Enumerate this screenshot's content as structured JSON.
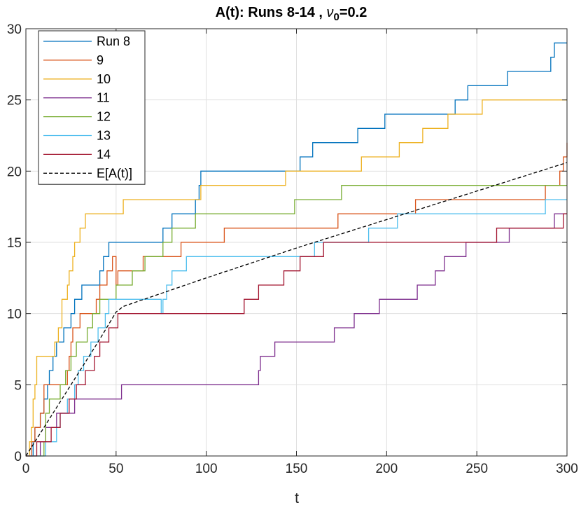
{
  "chart_data": {
    "type": "line",
    "title": "A(t): Runs 8-14 , ν₀=0.2",
    "title_parts": {
      "main": "A(t): Runs 8-14 , ",
      "symbol": "ν",
      "subscript": "0",
      "suffix": "=0.2"
    },
    "xlabel": "t",
    "ylabel": "",
    "xlim": [
      0,
      300
    ],
    "ylim": [
      0,
      30
    ],
    "xticks": [
      "0",
      "50",
      "100",
      "150",
      "200",
      "250",
      "300"
    ],
    "yticks": [
      "0",
      "5",
      "10",
      "15",
      "20",
      "25",
      "30"
    ],
    "grid": true,
    "legend_position": "top-left",
    "series": [
      {
        "name": "Run 8",
        "color": "#0072BD",
        "style": "step",
        "points": [
          [
            0,
            0
          ],
          [
            4,
            1
          ],
          [
            5,
            2
          ],
          [
            8,
            3
          ],
          [
            10,
            4
          ],
          [
            12,
            5
          ],
          [
            13,
            6
          ],
          [
            15,
            7
          ],
          [
            17,
            8
          ],
          [
            20,
            8
          ],
          [
            21,
            9
          ],
          [
            25,
            10
          ],
          [
            27,
            11
          ],
          [
            30,
            11
          ],
          [
            31,
            12
          ],
          [
            38,
            12
          ],
          [
            41,
            13
          ],
          [
            43,
            14
          ],
          [
            45,
            14
          ],
          [
            46,
            15
          ],
          [
            47,
            15
          ],
          [
            75,
            15
          ],
          [
            76,
            16
          ],
          [
            80,
            16
          ],
          [
            81,
            17
          ],
          [
            93,
            17
          ],
          [
            94,
            18
          ],
          [
            96,
            19
          ],
          [
            97,
            20
          ],
          [
            98,
            20
          ],
          [
            151,
            20
          ],
          [
            152,
            21
          ],
          [
            158,
            21
          ],
          [
            159,
            22
          ],
          [
            183,
            22
          ],
          [
            184,
            23
          ],
          [
            198,
            23
          ],
          [
            199,
            24
          ],
          [
            214,
            24
          ],
          [
            215,
            24
          ],
          [
            237,
            24
          ],
          [
            238,
            25
          ],
          [
            245,
            26
          ],
          [
            266,
            26
          ],
          [
            267,
            27
          ],
          [
            290,
            27
          ],
          [
            291,
            28
          ],
          [
            293,
            29
          ],
          [
            300,
            29
          ]
        ]
      },
      {
        "name": "9",
        "color": "#D95319",
        "style": "step",
        "points": [
          [
            0,
            0
          ],
          [
            3,
            1
          ],
          [
            5,
            2
          ],
          [
            8,
            3
          ],
          [
            10,
            5
          ],
          [
            13,
            5
          ],
          [
            22,
            5
          ],
          [
            23,
            6
          ],
          [
            24,
            7
          ],
          [
            25,
            8
          ],
          [
            26,
            9
          ],
          [
            28,
            9
          ],
          [
            30,
            10
          ],
          [
            38,
            10
          ],
          [
            39,
            11
          ],
          [
            41,
            12
          ],
          [
            44,
            12
          ],
          [
            45,
            13
          ],
          [
            48,
            14
          ],
          [
            49,
            14
          ],
          [
            50,
            12
          ],
          [
            51,
            13
          ],
          [
            57,
            13
          ],
          [
            58,
            13
          ],
          [
            64,
            13
          ],
          [
            65,
            14
          ],
          [
            74,
            14
          ],
          [
            75,
            14
          ],
          [
            85,
            14
          ],
          [
            86,
            15
          ],
          [
            88,
            15
          ],
          [
            89,
            15
          ],
          [
            104,
            15
          ],
          [
            110,
            16
          ],
          [
            172,
            16
          ],
          [
            173,
            17
          ],
          [
            180,
            17
          ],
          [
            181,
            17
          ],
          [
            215,
            17
          ],
          [
            216,
            18
          ],
          [
            250,
            18
          ],
          [
            287,
            18
          ],
          [
            288,
            19
          ],
          [
            295,
            19
          ],
          [
            296,
            20
          ],
          [
            298,
            21
          ],
          [
            300,
            22
          ]
        ]
      },
      {
        "name": "10",
        "color": "#EDB120",
        "style": "step",
        "points": [
          [
            0,
            0
          ],
          [
            2,
            1
          ],
          [
            3,
            2
          ],
          [
            4,
            4
          ],
          [
            5,
            5
          ],
          [
            6,
            7
          ],
          [
            15,
            7
          ],
          [
            16,
            8
          ],
          [
            18,
            9
          ],
          [
            20,
            11
          ],
          [
            23,
            12
          ],
          [
            24,
            13
          ],
          [
            26,
            14
          ],
          [
            27,
            15
          ],
          [
            30,
            16
          ],
          [
            33,
            17
          ],
          [
            44,
            17
          ],
          [
            53,
            17
          ],
          [
            54,
            18
          ],
          [
            65,
            18
          ],
          [
            96,
            18
          ],
          [
            97,
            19
          ],
          [
            111,
            19
          ],
          [
            143,
            19
          ],
          [
            144,
            20
          ],
          [
            160,
            20
          ],
          [
            185,
            20
          ],
          [
            186,
            21
          ],
          [
            206,
            21
          ],
          [
            207,
            22
          ],
          [
            219,
            22
          ],
          [
            220,
            23
          ],
          [
            233,
            23
          ],
          [
            234,
            24
          ],
          [
            252,
            24
          ],
          [
            253,
            25
          ],
          [
            300,
            25
          ]
        ]
      },
      {
        "name": "11",
        "color": "#7E2F8E",
        "style": "step",
        "points": [
          [
            0,
            0
          ],
          [
            8,
            1
          ],
          [
            11,
            2
          ],
          [
            17,
            3
          ],
          [
            25,
            3
          ],
          [
            27,
            4
          ],
          [
            38,
            4
          ],
          [
            52,
            4
          ],
          [
            53,
            5
          ],
          [
            128,
            5
          ],
          [
            129,
            6
          ],
          [
            130,
            7
          ],
          [
            137,
            7
          ],
          [
            138,
            8
          ],
          [
            153,
            8
          ],
          [
            170,
            8
          ],
          [
            171,
            9
          ],
          [
            172,
            9
          ],
          [
            173,
            9
          ],
          [
            181,
            9
          ],
          [
            182,
            10
          ],
          [
            195,
            10
          ],
          [
            196,
            11
          ],
          [
            200,
            11
          ],
          [
            205,
            11
          ],
          [
            217,
            12
          ],
          [
            226,
            12
          ],
          [
            227,
            13
          ],
          [
            230,
            13
          ],
          [
            232,
            14
          ],
          [
            233,
            14
          ],
          [
            244,
            15
          ],
          [
            255,
            15
          ],
          [
            267,
            15
          ],
          [
            268,
            16
          ],
          [
            278,
            16
          ],
          [
            279,
            16
          ],
          [
            292,
            16
          ],
          [
            293,
            17
          ],
          [
            300,
            17
          ]
        ]
      },
      {
        "name": "12",
        "color": "#77AC30",
        "style": "step",
        "points": [
          [
            0,
            0
          ],
          [
            10,
            1
          ],
          [
            11,
            3
          ],
          [
            13,
            4
          ],
          [
            15,
            4
          ],
          [
            19,
            5
          ],
          [
            22,
            6
          ],
          [
            25,
            7
          ],
          [
            28,
            8
          ],
          [
            34,
            9
          ],
          [
            37,
            10
          ],
          [
            41,
            11
          ],
          [
            46,
            11
          ],
          [
            50,
            12
          ],
          [
            58,
            12
          ],
          [
            59,
            13
          ],
          [
            66,
            14
          ],
          [
            75,
            14
          ],
          [
            76,
            15
          ],
          [
            80,
            15
          ],
          [
            81,
            16
          ],
          [
            93,
            16
          ],
          [
            94,
            17
          ],
          [
            102,
            17
          ],
          [
            120,
            17
          ],
          [
            121,
            17
          ],
          [
            148,
            17
          ],
          [
            149,
            18
          ],
          [
            160,
            18
          ],
          [
            174,
            18
          ],
          [
            175,
            19
          ],
          [
            211,
            19
          ],
          [
            300,
            19
          ]
        ]
      },
      {
        "name": "13",
        "color": "#4DBEEE",
        "style": "step",
        "points": [
          [
            0,
            0
          ],
          [
            10,
            0
          ],
          [
            11,
            1
          ],
          [
            16,
            1
          ],
          [
            17,
            2
          ],
          [
            19,
            3
          ],
          [
            23,
            4
          ],
          [
            27,
            5
          ],
          [
            29,
            6
          ],
          [
            32,
            7
          ],
          [
            36,
            8
          ],
          [
            40,
            9
          ],
          [
            44,
            10
          ],
          [
            46,
            11
          ],
          [
            75,
            10
          ],
          [
            76,
            11
          ],
          [
            78,
            12
          ],
          [
            81,
            13
          ],
          [
            89,
            14
          ],
          [
            101,
            14
          ],
          [
            102,
            14
          ],
          [
            159,
            14
          ],
          [
            160,
            15
          ],
          [
            171,
            15
          ],
          [
            172,
            15
          ],
          [
            189,
            15
          ],
          [
            190,
            16
          ],
          [
            205,
            16
          ],
          [
            206,
            17
          ],
          [
            215,
            17
          ],
          [
            264,
            17
          ],
          [
            287,
            17
          ],
          [
            288,
            18
          ],
          [
            300,
            18
          ]
        ]
      },
      {
        "name": "14",
        "color": "#A2142F",
        "style": "step",
        "points": [
          [
            0,
            0
          ],
          [
            5,
            0
          ],
          [
            6,
            1
          ],
          [
            9,
            1
          ],
          [
            14,
            2
          ],
          [
            19,
            3
          ],
          [
            24,
            4
          ],
          [
            28,
            5
          ],
          [
            33,
            6
          ],
          [
            38,
            7
          ],
          [
            41,
            8
          ],
          [
            46,
            9
          ],
          [
            51,
            10
          ],
          [
            103,
            10
          ],
          [
            104,
            10
          ],
          [
            120,
            10
          ],
          [
            121,
            11
          ],
          [
            128,
            11
          ],
          [
            129,
            12
          ],
          [
            142,
            12
          ],
          [
            143,
            13
          ],
          [
            150,
            13
          ],
          [
            152,
            14
          ],
          [
            165,
            15
          ],
          [
            199,
            15
          ],
          [
            210,
            15
          ],
          [
            240,
            15
          ],
          [
            260,
            15
          ],
          [
            261,
            16
          ],
          [
            266,
            16
          ],
          [
            280,
            16
          ],
          [
            281,
            16
          ],
          [
            287,
            16
          ],
          [
            298,
            17
          ],
          [
            300,
            17
          ]
        ]
      },
      {
        "name": "E[A(t)]",
        "color": "#000000",
        "style": "dashed",
        "points": [
          [
            0,
            0
          ],
          [
            10,
            2
          ],
          [
            20,
            4
          ],
          [
            30,
            6
          ],
          [
            40,
            8
          ],
          [
            50,
            10.1
          ],
          [
            54,
            10.5
          ],
          [
            100,
            12.5
          ],
          [
            150,
            14.6
          ],
          [
            200,
            16.6
          ],
          [
            250,
            18.6
          ],
          [
            300,
            20.6
          ]
        ]
      }
    ]
  }
}
